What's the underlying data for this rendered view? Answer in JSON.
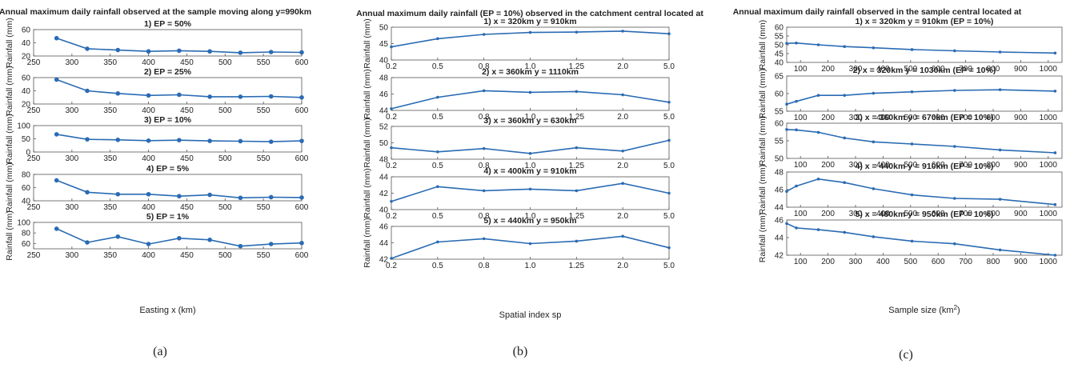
{
  "panel_labels": [
    "(a)",
    "(b)",
    "(c)"
  ],
  "colors": {
    "line": "#2a6bb3",
    "axis": "#555555",
    "text": "#222222"
  },
  "chart_data": [
    {
      "type": "line",
      "title": "Annual maximum daily rainfall observed at the sample moving along y=990km",
      "xlabel": "Easting x (km)",
      "ylabel": "Rainfall (mm)",
      "xlim": [
        250,
        600
      ],
      "xticks": [
        250,
        300,
        350,
        400,
        450,
        500,
        550,
        600
      ],
      "x": [
        280,
        320,
        360,
        400,
        440,
        480,
        520,
        560,
        600
      ],
      "subplots": [
        {
          "title": "1) EP = 50%",
          "ylim": [
            20,
            60
          ],
          "yticks": [
            20,
            40,
            60
          ],
          "values": [
            47,
            31,
            29,
            27,
            28,
            27,
            25,
            26,
            25.5
          ]
        },
        {
          "title": "2) EP = 25%",
          "ylim": [
            20,
            60
          ],
          "yticks": [
            20,
            40,
            60
          ],
          "values": [
            57,
            40,
            36,
            33,
            34,
            31,
            31,
            31.5,
            30
          ]
        },
        {
          "title": "3) EP = 10%",
          "ylim": [
            0,
            100
          ],
          "yticks": [
            0,
            50,
            100
          ],
          "values": [
            67,
            48,
            46,
            43,
            45,
            42,
            41,
            39,
            42
          ]
        },
        {
          "title": "4) EP = 5%",
          "ylim": [
            40,
            80
          ],
          "yticks": [
            40,
            60,
            80
          ],
          "values": [
            71,
            53,
            50,
            50,
            47,
            49,
            44.5,
            45.5,
            45
          ]
        },
        {
          "title": "5) EP = 1%",
          "ylim": [
            50,
            100
          ],
          "yticks": [
            60,
            80,
            100
          ],
          "values": [
            88,
            62,
            73,
            59,
            70,
            67,
            55,
            59,
            61
          ]
        }
      ]
    },
    {
      "type": "line",
      "title": "Annual maximum daily rainfall (EP = 10%) observed in the catchment central located at",
      "xlabel": "Spatial index sp",
      "ylabel": "Rainfall (mm)",
      "categories": [
        "0.2",
        "0.5",
        "0.8",
        "1.0",
        "1.25",
        "2.0",
        "5.0"
      ],
      "subplots": [
        {
          "title": "1) x = 320km y = 910km",
          "ylim": [
            40,
            50
          ],
          "yticks": [
            40,
            45,
            50
          ],
          "values": [
            44,
            46.5,
            47.8,
            48.4,
            48.5,
            48.8,
            48
          ]
        },
        {
          "title": "2) x = 360km y = 1110km",
          "ylim": [
            44,
            48
          ],
          "yticks": [
            44,
            46,
            48
          ],
          "values": [
            44.2,
            45.6,
            46.4,
            46.2,
            46.3,
            45.9,
            45
          ]
        },
        {
          "title": "3) x = 360km y = 630km",
          "ylim": [
            48,
            52
          ],
          "yticks": [
            48,
            50,
            52
          ],
          "values": [
            49.4,
            48.9,
            49.3,
            48.7,
            49.4,
            49,
            50.3
          ]
        },
        {
          "title": "4) x = 400km y = 910km",
          "ylim": [
            40,
            44
          ],
          "yticks": [
            40,
            42,
            44
          ],
          "values": [
            41,
            42.8,
            42.3,
            42.5,
            42.3,
            43.2,
            42
          ]
        },
        {
          "title": "5) x = 440km y = 950km",
          "ylim": [
            42,
            46
          ],
          "yticks": [
            42,
            44,
            46
          ],
          "values": [
            42.1,
            44.1,
            44.5,
            43.9,
            44.2,
            44.8,
            43.4
          ]
        }
      ]
    },
    {
      "type": "line",
      "title": "Annual maximum daily rainfall observed in the sample central located at",
      "xlabel": "Sample size (km²)",
      "ylabel": "Rainfall (mm)",
      "xlim": [
        50,
        1050
      ],
      "xticks": [
        100,
        200,
        300,
        400,
        500,
        600,
        700,
        800,
        900,
        1000
      ],
      "x": [
        50,
        85,
        165,
        260,
        365,
        505,
        660,
        825,
        1025
      ],
      "subplots": [
        {
          "title": "1) x = 320km y = 910km (EP = 10%)",
          "ylim": [
            40,
            60
          ],
          "yticks": [
            40,
            45,
            50,
            55,
            60
          ],
          "values": [
            50.8,
            51,
            50,
            49,
            48.3,
            47.3,
            46.6,
            45.9,
            45.3
          ]
        },
        {
          "title": "2) x = 320km y = 1030km (EP = 10%)",
          "ylim": [
            55,
            65
          ],
          "yticks": [
            55,
            60,
            65
          ],
          "values": [
            57,
            57.8,
            59.5,
            59.5,
            60.1,
            60.5,
            60.9,
            61.1,
            60.7
          ]
        },
        {
          "title": "3) x = 360km y = 670km (EP = 10%)",
          "ylim": [
            50,
            60
          ],
          "yticks": [
            50,
            55,
            60
          ],
          "values": [
            58.2,
            58.1,
            57.4,
            55.8,
            54.7,
            54.1,
            53.4,
            52.4,
            51.6
          ]
        },
        {
          "title": "4) x = 440km y = 910km (EP = 10%)",
          "ylim": [
            44,
            48
          ],
          "yticks": [
            44,
            46,
            48
          ],
          "values": [
            45.8,
            46.4,
            47.2,
            46.8,
            46.1,
            45.4,
            45,
            44.9,
            44.3
          ]
        },
        {
          "title": "5) x = 480km y = 950km (EP = 10%)",
          "ylim": [
            42,
            46
          ],
          "yticks": [
            42,
            44,
            46
          ],
          "values": [
            45.6,
            45.1,
            44.9,
            44.6,
            44.1,
            43.6,
            43.3,
            42.6,
            42
          ]
        }
      ]
    }
  ]
}
